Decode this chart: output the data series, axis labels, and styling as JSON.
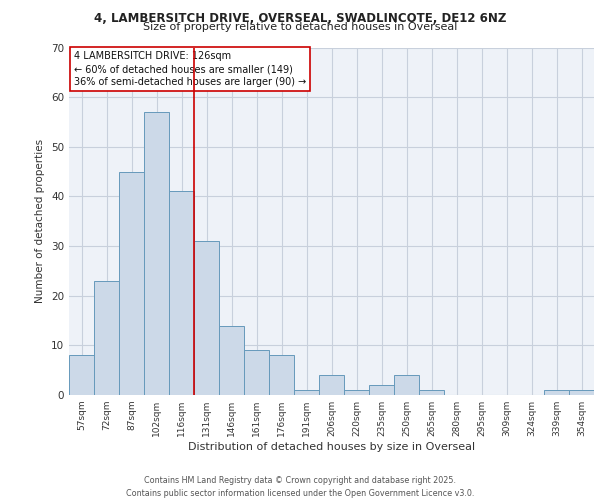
{
  "title1": "4, LAMBERSITCH DRIVE, OVERSEAL, SWADLINCOTE, DE12 6NZ",
  "title2": "Size of property relative to detached houses in Overseal",
  "xlabel": "Distribution of detached houses by size in Overseal",
  "ylabel": "Number of detached properties",
  "bar_labels": [
    "57sqm",
    "72sqm",
    "87sqm",
    "102sqm",
    "116sqm",
    "131sqm",
    "146sqm",
    "161sqm",
    "176sqm",
    "191sqm",
    "206sqm",
    "220sqm",
    "235sqm",
    "250sqm",
    "265sqm",
    "280sqm",
    "295sqm",
    "309sqm",
    "324sqm",
    "339sqm",
    "354sqm"
  ],
  "bar_values": [
    8,
    23,
    45,
    57,
    41,
    31,
    14,
    9,
    8,
    1,
    4,
    1,
    2,
    4,
    1,
    0,
    0,
    0,
    0,
    1,
    1
  ],
  "bar_color": "#ccd9e8",
  "bar_edgecolor": "#6699bb",
  "background_color": "#ffffff",
  "plot_bg_color": "#eef2f8",
  "vline_x": 4.5,
  "vline_color": "#cc0000",
  "annotation_text": "4 LAMBERSITCH DRIVE: 126sqm\n← 60% of detached houses are smaller (149)\n36% of semi-detached houses are larger (90) →",
  "annotation_box_color": "white",
  "annotation_box_edgecolor": "#cc0000",
  "ylim": [
    0,
    70
  ],
  "yticks": [
    0,
    10,
    20,
    30,
    40,
    50,
    60,
    70
  ],
  "footer": "Contains HM Land Registry data © Crown copyright and database right 2025.\nContains public sector information licensed under the Open Government Licence v3.0.",
  "grid_color": "#c8d0dc",
  "title1_fontsize": 8.5,
  "title2_fontsize": 8.0
}
